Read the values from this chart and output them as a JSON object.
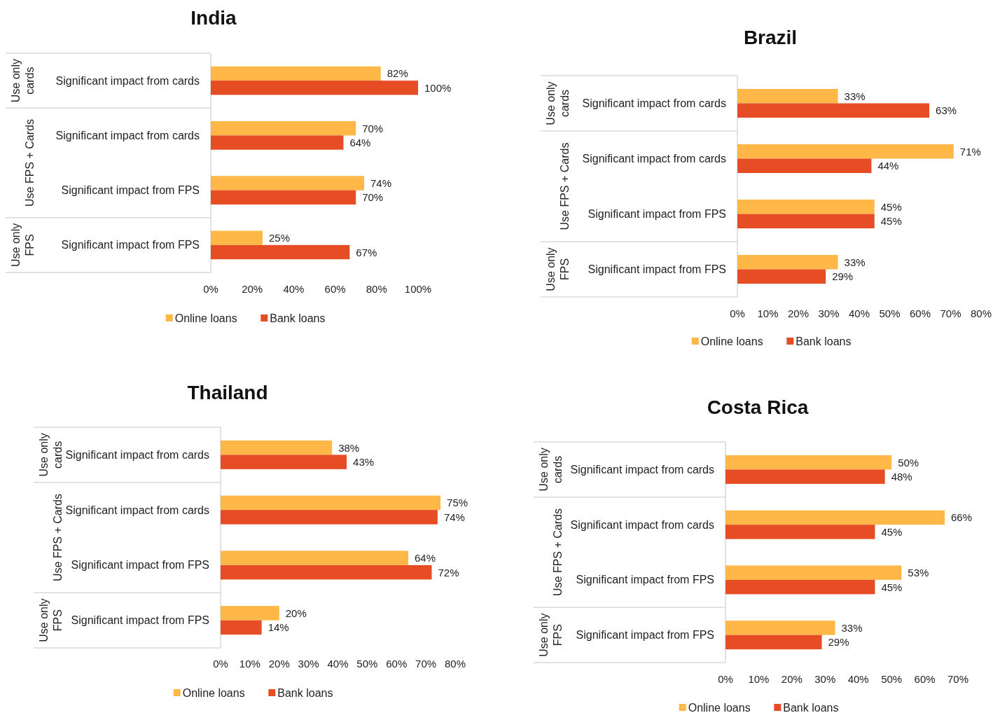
{
  "chart_data": [
    {
      "type": "bar",
      "orientation": "horizontal",
      "title": "India",
      "categories": [
        "Significant impact from cards",
        "Significant impact from cards",
        "Significant impact from FPS",
        "Significant impact from FPS"
      ],
      "annotations": [
        "Use only cards",
        "Use FPS + Cards",
        "Use only FPS"
      ],
      "series": [
        {
          "name": "Online loans",
          "color": "#ffb848",
          "values": [
            82,
            70,
            74,
            25
          ],
          "value_labels": [
            "82%",
            "70%",
            "74%",
            "25%"
          ]
        },
        {
          "name": "Bank loans",
          "color": "#e64d24",
          "values": [
            100,
            64,
            70,
            67
          ],
          "value_labels": [
            "100%",
            "64%",
            "70%",
            "67%"
          ]
        }
      ],
      "xlim": [
        0,
        100
      ],
      "xticks": [
        {
          "value": 0,
          "label": "0%"
        },
        {
          "value": 20,
          "label": "20%"
        },
        {
          "value": 40,
          "label": "40%"
        },
        {
          "value": 60,
          "label": "60%"
        },
        {
          "value": 80,
          "label": "80%"
        },
        {
          "value": 100,
          "label": "100%"
        }
      ],
      "legend": "bottom"
    },
    {
      "type": "bar",
      "orientation": "horizontal",
      "title": "Brazil",
      "categories": [
        "Significant impact from cards",
        "Significant impact from cards",
        "Significant impact from FPS",
        "Significant impact from FPS"
      ],
      "annotations": [
        "Use only cards",
        "Use FPS + Cards",
        "Use only FPS"
      ],
      "series": [
        {
          "name": "Online loans",
          "color": "#ffb848",
          "values": [
            33,
            71,
            45,
            33
          ],
          "value_labels": [
            "33%",
            "71%",
            "45%",
            "33%"
          ]
        },
        {
          "name": "Bank loans",
          "color": "#e64d24",
          "values": [
            63,
            44,
            45,
            29
          ],
          "value_labels": [
            "63%",
            "44%",
            "45%",
            "29%"
          ]
        }
      ],
      "xlim": [
        0,
        80
      ],
      "xticks": [
        {
          "value": 0,
          "label": "0%"
        },
        {
          "value": 10,
          "label": "10%"
        },
        {
          "value": 20,
          "label": "20%"
        },
        {
          "value": 30,
          "label": "30%"
        },
        {
          "value": 40,
          "label": "40%"
        },
        {
          "value": 50,
          "label": "50%"
        },
        {
          "value": 60,
          "label": "60%"
        },
        {
          "value": 70,
          "label": "70%"
        },
        {
          "value": 80,
          "label": "80%"
        }
      ],
      "legend": "bottom"
    },
    {
      "type": "bar",
      "orientation": "horizontal",
      "title": "Thailand",
      "categories": [
        "Significant impact from cards",
        "Significant impact from cards",
        "Significant impact from FPS",
        "Significant impact from FPS"
      ],
      "annotations": [
        "Use only cards",
        "Use FPS + Cards",
        "Use only FPS"
      ],
      "series": [
        {
          "name": "Online loans",
          "color": "#ffb848",
          "values": [
            38,
            75,
            64,
            20
          ],
          "value_labels": [
            "38%",
            "75%",
            "64%",
            "20%"
          ]
        },
        {
          "name": "Bank loans",
          "color": "#e64d24",
          "values": [
            43,
            74,
            72,
            14
          ],
          "value_labels": [
            "43%",
            "74%",
            "72%",
            "14%"
          ]
        }
      ],
      "xlim": [
        0,
        80
      ],
      "xticks": [
        {
          "value": 0,
          "label": "0%"
        },
        {
          "value": 10,
          "label": "10%"
        },
        {
          "value": 20,
          "label": "20%"
        },
        {
          "value": 30,
          "label": "30%"
        },
        {
          "value": 40,
          "label": "40%"
        },
        {
          "value": 50,
          "label": "50%"
        },
        {
          "value": 60,
          "label": "60%"
        },
        {
          "value": 70,
          "label": "70%"
        },
        {
          "value": 80,
          "label": "80%"
        }
      ],
      "legend": "bottom"
    },
    {
      "type": "bar",
      "orientation": "horizontal",
      "title": "Costa Rica",
      "categories": [
        "Significant impact from cards",
        "Significant impact from cards",
        "Significant impact from FPS",
        "Significant impact from FPS"
      ],
      "annotations": [
        "Use only cards",
        "Use FPS + Cards",
        "Use only FPS"
      ],
      "series": [
        {
          "name": "Online loans",
          "color": "#ffb848",
          "values": [
            50,
            66,
            53,
            33
          ],
          "value_labels": [
            "50%",
            "66%",
            "53%",
            "33%"
          ]
        },
        {
          "name": "Bank loans",
          "color": "#e64d24",
          "values": [
            48,
            45,
            45,
            29
          ],
          "value_labels": [
            "48%",
            "45%",
            "45%",
            "29%"
          ]
        }
      ],
      "xlim": [
        0,
        70
      ],
      "xticks": [
        {
          "value": 0,
          "label": "0%"
        },
        {
          "value": 10,
          "label": "10%"
        },
        {
          "value": 20,
          "label": "20%"
        },
        {
          "value": 30,
          "label": "30%"
        },
        {
          "value": 40,
          "label": "40%"
        },
        {
          "value": 50,
          "label": "50%"
        },
        {
          "value": 60,
          "label": "60%"
        },
        {
          "value": 70,
          "label": "70%"
        }
      ],
      "legend": "bottom"
    }
  ]
}
